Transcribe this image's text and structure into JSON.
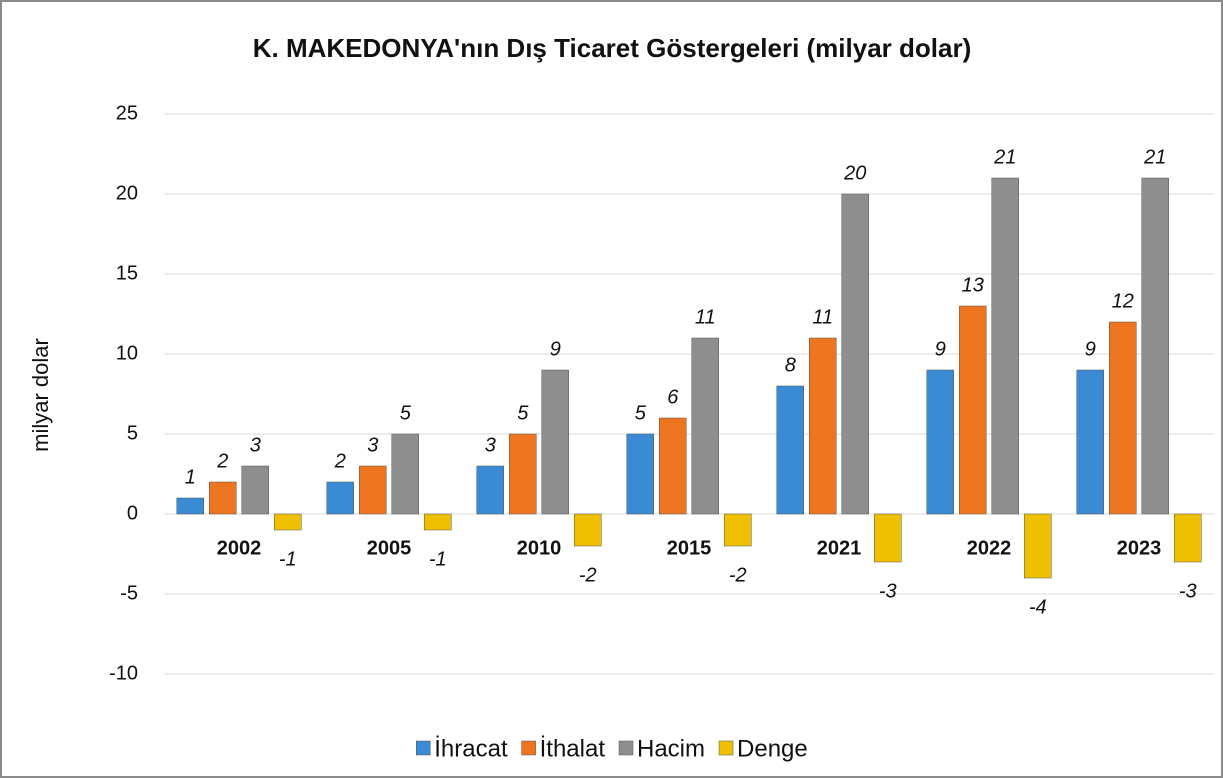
{
  "chart_data": {
    "type": "bar",
    "title": "K. MAKEDONYA'nın Dış Ticaret Göstergeleri  (milyar dolar)",
    "y_label": "milyar dolar",
    "categories": [
      "2002",
      "2005",
      "2010",
      "2015",
      "2021",
      "2022",
      "2023"
    ],
    "series": [
      {
        "name": "İhracat",
        "color": "#3a8ad4",
        "values": [
          1,
          2,
          3,
          5,
          8,
          9,
          9
        ]
      },
      {
        "name": "İthalat",
        "color": "#ee7520",
        "values": [
          2,
          3,
          5,
          6,
          11,
          13,
          12
        ]
      },
      {
        "name": "Hacim",
        "color": "#8e8e8e",
        "values": [
          3,
          5,
          9,
          11,
          20,
          21,
          21
        ]
      },
      {
        "name": "Denge",
        "color": "#eec000",
        "values": [
          -1,
          -1,
          -2,
          -2,
          -3,
          -4,
          -3
        ]
      }
    ],
    "ylim": [
      -10,
      25
    ],
    "yticks": [
      -10,
      -5,
      0,
      5,
      10,
      15,
      20,
      25
    ],
    "grid": true,
    "legend": "bottom"
  }
}
